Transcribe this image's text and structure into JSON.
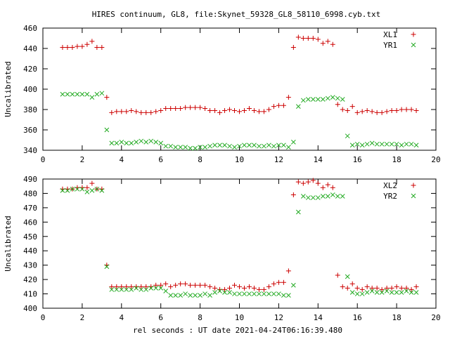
{
  "title": "HIRES continuum, GL8, file:Skynet_59328_GL8_58110_6998.cyb.txt",
  "xlabel": "rel seconds : UT date 2021-04-24T06:16:39.480",
  "colors": {
    "red": "#cc0000",
    "green": "#22aa22",
    "axis": "#000000"
  },
  "chart_data": [
    {
      "type": "scatter",
      "title": "HIRES continuum, GL8, file:Skynet_59328_GL8_58110_6998.cyb.txt",
      "xlabel": "",
      "ylabel": "Uncalibrated",
      "xlim": [
        0,
        20
      ],
      "ylim": [
        340,
        460
      ],
      "xticks": [
        0,
        2,
        4,
        6,
        8,
        10,
        12,
        14,
        16,
        18,
        20
      ],
      "yticks": [
        340,
        360,
        380,
        400,
        420,
        440,
        460
      ],
      "legend": "top-right",
      "grid": false,
      "x": [
        1.0,
        1.25,
        1.5,
        1.75,
        2.0,
        2.25,
        2.5,
        2.75,
        3.0,
        3.25,
        3.5,
        3.75,
        4.0,
        4.25,
        4.5,
        4.75,
        5.0,
        5.25,
        5.5,
        5.75,
        6.0,
        6.25,
        6.5,
        6.75,
        7.0,
        7.25,
        7.5,
        7.75,
        8.0,
        8.25,
        8.5,
        8.75,
        9.0,
        9.25,
        9.5,
        9.75,
        10.0,
        10.25,
        10.5,
        10.75,
        11.0,
        11.25,
        11.5,
        11.75,
        12.0,
        12.25,
        12.5,
        12.75,
        13.0,
        13.25,
        13.5,
        13.75,
        14.0,
        14.25,
        14.5,
        14.75,
        15.0,
        15.25,
        15.5,
        15.75,
        16.0,
        16.25,
        16.5,
        16.75,
        17.0,
        17.25,
        17.5,
        17.75,
        18.0,
        18.25,
        18.5,
        18.75,
        19.0
      ],
      "series": [
        {
          "name": "XL1",
          "color": "#cc0000",
          "marker": "plus",
          "values": [
            441,
            441,
            441,
            442,
            442,
            444,
            447,
            441,
            441,
            392,
            377,
            378,
            378,
            378,
            379,
            378,
            377,
            377,
            377,
            378,
            379,
            381,
            381,
            381,
            381,
            382,
            382,
            382,
            382,
            381,
            379,
            379,
            377,
            379,
            380,
            379,
            378,
            379,
            381,
            379,
            378,
            378,
            380,
            383,
            384,
            384,
            392,
            441,
            451,
            450,
            450,
            450,
            449,
            445,
            447,
            444,
            385,
            380,
            379,
            383,
            377,
            378,
            379,
            378,
            377,
            377,
            378,
            379,
            379,
            380,
            380,
            380,
            379
          ]
        },
        {
          "name": "YR1",
          "color": "#22aa22",
          "marker": "cross",
          "values": [
            395,
            395,
            395,
            395,
            395,
            395,
            392,
            395,
            396,
            360,
            347,
            347,
            348,
            347,
            347,
            348,
            349,
            348,
            349,
            348,
            347,
            344,
            344,
            343,
            343,
            343,
            342,
            342,
            343,
            343,
            344,
            345,
            345,
            345,
            344,
            343,
            344,
            345,
            345,
            345,
            344,
            344,
            345,
            344,
            345,
            345,
            343,
            348,
            383,
            389,
            390,
            390,
            390,
            390,
            391,
            392,
            391,
            390,
            354,
            345,
            346,
            345,
            346,
            347,
            346,
            346,
            346,
            346,
            346,
            345,
            346,
            346,
            345
          ]
        }
      ]
    },
    {
      "type": "scatter",
      "title": "",
      "xlabel": "rel seconds : UT date 2021-04-24T06:16:39.480",
      "ylabel": "Uncalibrated",
      "xlim": [
        0,
        20
      ],
      "ylim": [
        400,
        490
      ],
      "xticks": [
        0,
        2,
        4,
        6,
        8,
        10,
        12,
        14,
        16,
        18,
        20
      ],
      "yticks": [
        400,
        410,
        420,
        430,
        440,
        450,
        460,
        470,
        480,
        490
      ],
      "legend": "top-right",
      "grid": false,
      "x": [
        1.0,
        1.25,
        1.5,
        1.75,
        2.0,
        2.25,
        2.5,
        2.75,
        3.0,
        3.25,
        3.5,
        3.75,
        4.0,
        4.25,
        4.5,
        4.75,
        5.0,
        5.25,
        5.5,
        5.75,
        6.0,
        6.25,
        6.5,
        6.75,
        7.0,
        7.25,
        7.5,
        7.75,
        8.0,
        8.25,
        8.5,
        8.75,
        9.0,
        9.25,
        9.5,
        9.75,
        10.0,
        10.25,
        10.5,
        10.75,
        11.0,
        11.25,
        11.5,
        11.75,
        12.0,
        12.25,
        12.5,
        12.75,
        13.0,
        13.25,
        13.5,
        13.75,
        14.0,
        14.25,
        14.5,
        14.75,
        15.0,
        15.25,
        15.5,
        15.75,
        16.0,
        16.25,
        16.5,
        16.75,
        17.0,
        17.25,
        17.5,
        17.75,
        18.0,
        18.25,
        18.5,
        18.75,
        19.0
      ],
      "series": [
        {
          "name": "XL2",
          "color": "#cc0000",
          "marker": "plus",
          "values": [
            483,
            483,
            483,
            484,
            484,
            484,
            487,
            483,
            483,
            430,
            415,
            415,
            415,
            415,
            415,
            415,
            415,
            415,
            415,
            416,
            416,
            417,
            415,
            416,
            417,
            417,
            416,
            416,
            416,
            416,
            415,
            414,
            413,
            413,
            414,
            416,
            415,
            414,
            415,
            414,
            413,
            413,
            415,
            417,
            418,
            418,
            426,
            479,
            488,
            487,
            488,
            489,
            487,
            484,
            486,
            484,
            423,
            415,
            414,
            417,
            414,
            413,
            415,
            414,
            414,
            413,
            414,
            414,
            415,
            414,
            414,
            413,
            415
          ]
        },
        {
          "name": "YR2",
          "color": "#22aa22",
          "marker": "cross",
          "values": [
            482,
            482,
            483,
            483,
            483,
            481,
            482,
            483,
            482,
            429,
            413,
            413,
            413,
            413,
            413,
            414,
            413,
            413,
            414,
            414,
            414,
            412,
            409,
            409,
            409,
            410,
            409,
            409,
            409,
            410,
            409,
            411,
            412,
            411,
            411,
            410,
            410,
            410,
            410,
            410,
            410,
            410,
            410,
            410,
            410,
            409,
            409,
            416,
            467,
            478,
            477,
            477,
            477,
            478,
            478,
            479,
            478,
            478,
            422,
            411,
            410,
            410,
            411,
            412,
            411,
            411,
            412,
            411,
            411,
            411,
            412,
            411,
            411
          ]
        }
      ]
    }
  ]
}
